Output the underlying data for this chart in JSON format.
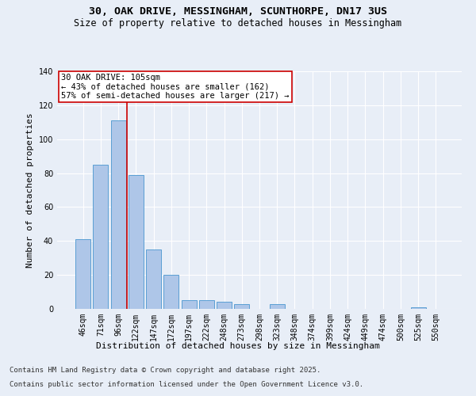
{
  "title1": "30, OAK DRIVE, MESSINGHAM, SCUNTHORPE, DN17 3US",
  "title2": "Size of property relative to detached houses in Messingham",
  "xlabel": "Distribution of detached houses by size in Messingham",
  "ylabel": "Number of detached properties",
  "bar_labels": [
    "46sqm",
    "71sqm",
    "96sqm",
    "122sqm",
    "147sqm",
    "172sqm",
    "197sqm",
    "222sqm",
    "248sqm",
    "273sqm",
    "298sqm",
    "323sqm",
    "348sqm",
    "374sqm",
    "399sqm",
    "424sqm",
    "449sqm",
    "474sqm",
    "500sqm",
    "525sqm",
    "550sqm"
  ],
  "bar_values": [
    41,
    85,
    111,
    79,
    35,
    20,
    5,
    5,
    4,
    3,
    0,
    3,
    0,
    0,
    0,
    0,
    0,
    0,
    0,
    1,
    0
  ],
  "bar_color": "#aec6e8",
  "bar_edge_color": "#5a9fd4",
  "vline_x_pos": 2.5,
  "vline_color": "#cc0000",
  "annotation_text": "30 OAK DRIVE: 105sqm\n← 43% of detached houses are smaller (162)\n57% of semi-detached houses are larger (217) →",
  "annotation_box_color": "#ffffff",
  "annotation_box_edge": "#cc0000",
  "ylim": [
    0,
    140
  ],
  "yticks": [
    0,
    20,
    40,
    60,
    80,
    100,
    120,
    140
  ],
  "bg_color": "#e8eef7",
  "footer1": "Contains HM Land Registry data © Crown copyright and database right 2025.",
  "footer2": "Contains public sector information licensed under the Open Government Licence v3.0.",
  "title1_fontsize": 9.5,
  "title2_fontsize": 8.5,
  "axis_label_fontsize": 8,
  "tick_fontsize": 7,
  "annotation_fontsize": 7.5,
  "footer_fontsize": 6.5,
  "ylabel_fontsize": 8
}
